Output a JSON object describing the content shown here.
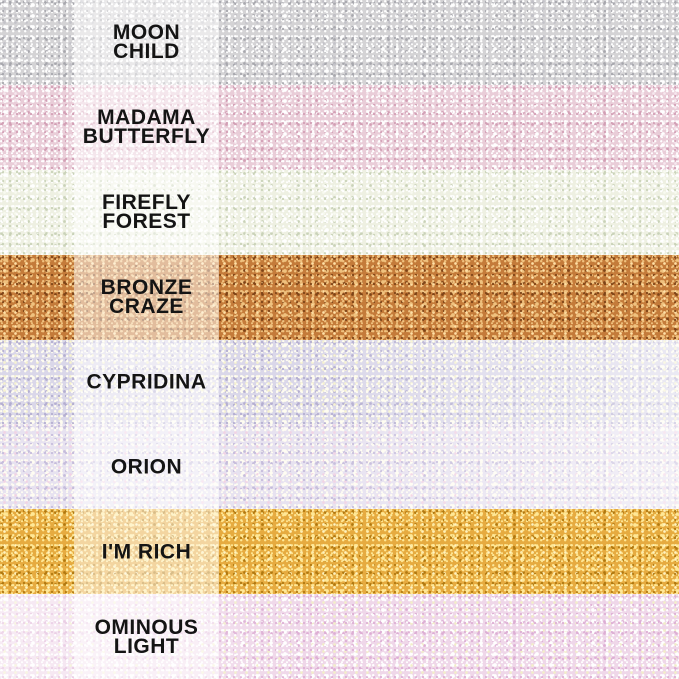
{
  "swatches": [
    {
      "name": "moon-child",
      "label": "MOON\nCHILD",
      "fade": "none",
      "colors": {
        "base": "#d4d3d5",
        "bright": "#ffffff",
        "dark": "#a7a7ad",
        "accent": "#c3c2c8"
      }
    },
    {
      "name": "madama-butterfly",
      "label": "MADAMA\nBUTTERFLY",
      "fade": "none",
      "colors": {
        "base": "#e9cdd8",
        "bright": "#ffffff",
        "dark": "#d29fb5",
        "accent": "#f6e8ee"
      }
    },
    {
      "name": "firefly-forest",
      "label": "FIREFLY\nFOREST",
      "fade": "none",
      "colors": {
        "base": "#eef0e2",
        "bright": "#ffffff",
        "dark": "#c9d2b8",
        "accent": "#f8faf0"
      }
    },
    {
      "name": "bronze-craze",
      "label": "BRONZE\nCRAZE",
      "fade": "none",
      "colors": {
        "base": "#c47b3a",
        "bright": "#f0c27f",
        "dark": "#7d4317",
        "accent": "#ffe0a6"
      }
    },
    {
      "name": "cypridina",
      "label": "CYPRIDINA",
      "fade": "right",
      "colors": {
        "base": "#dad7e9",
        "bright": "#fffdf0",
        "dark": "#b4aed0",
        "accent": "#f7f3cf"
      }
    },
    {
      "name": "orion",
      "label": "ORION",
      "fade": "right",
      "colors": {
        "base": "#e7e2f0",
        "bright": "#fffdf2",
        "dark": "#c5bcdb",
        "accent": "#f2d3e4"
      }
    },
    {
      "name": "im-rich",
      "label": "I'M RICH",
      "fade": "none",
      "colors": {
        "base": "#e6ab40",
        "bright": "#ffe896",
        "dark": "#b0780f",
        "accent": "#fff3c0"
      }
    },
    {
      "name": "ominous-light",
      "label": "OMINOUS\nLIGHT",
      "fade": "left",
      "colors": {
        "base": "#efd7e9",
        "bright": "#ffffff",
        "dark": "#ddaed4",
        "accent": "#f2efc8"
      }
    }
  ],
  "label_style": {
    "text_color": "#141414"
  },
  "band": {
    "overlay_color": "rgba(255,255,255,0.5)"
  }
}
